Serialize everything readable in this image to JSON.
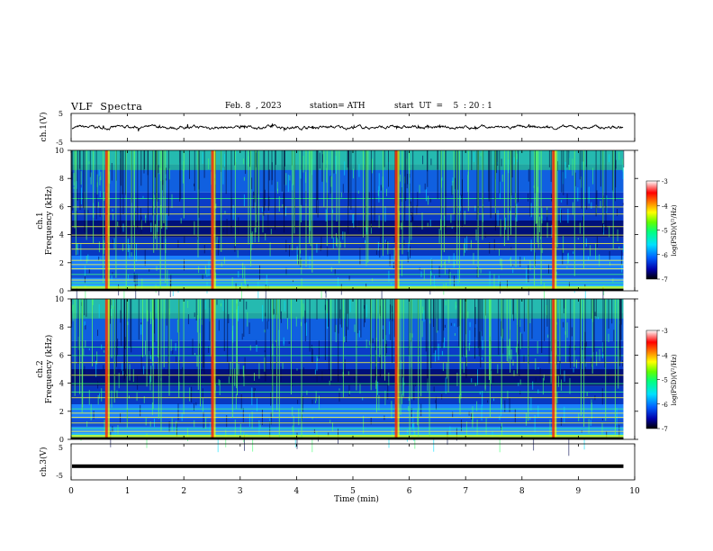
{
  "header": {
    "title": "VLF  Spectra",
    "date": "Feb. 8  , 2023",
    "station": "station= ATH",
    "start_ut": "start  UT  =    5  : 20 : 1"
  },
  "chart_data": [
    {
      "type": "line",
      "panel": "ch1-waveform",
      "ylabel": "ch.1(V)",
      "ylim": [
        -5,
        5
      ],
      "yticks": [
        "5",
        "-5"
      ],
      "xlim": [
        0,
        10
      ],
      "trace_end_min": 9.8,
      "mean_level": 0,
      "color": "#000000"
    },
    {
      "type": "heatmap",
      "panel": "ch1-spectrogram",
      "ylabel_lines": [
        "ch.1",
        "Frequency  (kHz)"
      ],
      "ylim": [
        0,
        10
      ],
      "yticks": [
        "0",
        "2",
        "4",
        "6",
        "8",
        "10"
      ],
      "xlim": [
        0,
        10
      ],
      "data_end_min": 9.8,
      "colorbar": {
        "label": "log(PSD)(V²/Hz)",
        "range": [
          -7,
          -3
        ],
        "ticks": [
          "-3",
          "-4",
          "-5",
          "-6",
          "-7"
        ],
        "colors": [
          "#000000",
          "#0000aa",
          "#0060ff",
          "#00e0ff",
          "#00ff80",
          "#60ff00",
          "#ffff00",
          "#ff8000",
          "#ff0000",
          "#ffffff"
        ]
      },
      "broadband_impulses_min": [
        0.62,
        2.5,
        5.76,
        8.55
      ]
    },
    {
      "type": "heatmap",
      "panel": "ch2-spectrogram",
      "ylabel_lines": [
        "ch.2",
        "Frequency  (kHz)"
      ],
      "ylim": [
        0,
        10
      ],
      "yticks": [
        "0",
        "2",
        "4",
        "6",
        "8",
        "10"
      ],
      "xlim": [
        0,
        10
      ],
      "data_end_min": 9.8,
      "colorbar": {
        "label": "log(PSD)(V²/Hz)",
        "range": [
          -7,
          -3
        ],
        "ticks": [
          "-3",
          "-4",
          "-5",
          "-6",
          "-7"
        ]
      },
      "broadband_impulses_min": [
        0.62,
        2.5,
        5.76,
        8.55
      ]
    },
    {
      "type": "line",
      "panel": "ch3-waveform",
      "ylabel": "ch.3(V)",
      "ylim": [
        -5,
        5
      ],
      "yticks": [
        "5",
        "-5"
      ],
      "xlim": [
        0,
        10
      ],
      "trace_end_min": 9.8,
      "level": -1.2,
      "color": "#000000"
    }
  ],
  "xaxis": {
    "label": "Time  (min)",
    "ticks": [
      "0",
      "1",
      "2",
      "3",
      "4",
      "5",
      "6",
      "7",
      "8",
      "9",
      "10"
    ]
  }
}
